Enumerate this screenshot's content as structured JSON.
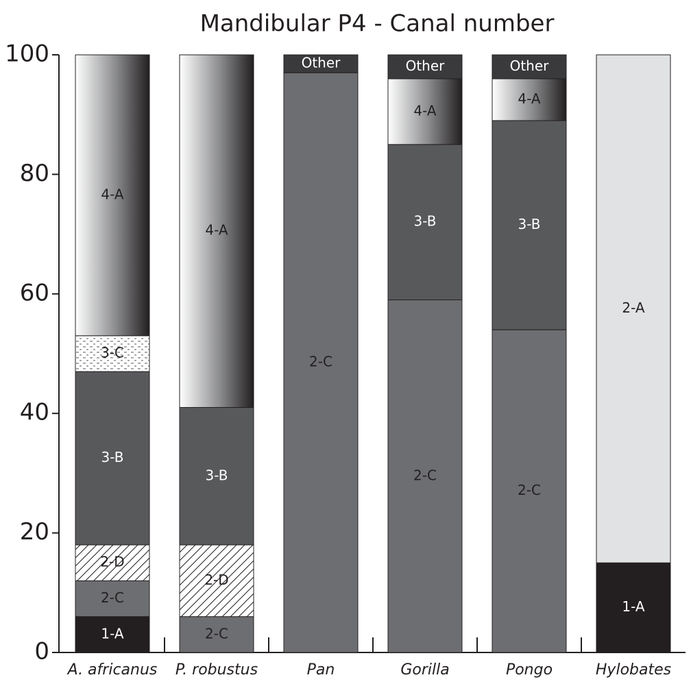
{
  "chart_data": {
    "type": "stacked_bar",
    "title": "Mandibular P4 - Canal number",
    "categories": [
      "A. africanus",
      "P. robustus",
      "Pan",
      "Gorilla",
      "Pongo",
      "Hylobates"
    ],
    "ylim": [
      0,
      100
    ],
    "yticks": [
      0,
      20,
      40,
      60,
      80,
      100
    ],
    "series": [
      {
        "name": "1-A",
        "color": "#231f20",
        "values": [
          6,
          null,
          null,
          null,
          null,
          15
        ]
      },
      {
        "name": "2-A",
        "color": "#e1e2e4",
        "values": [
          null,
          null,
          null,
          null,
          null,
          85
        ]
      },
      {
        "name": "2-C",
        "color": "#6d6e71",
        "values": [
          6,
          6,
          97,
          59,
          54,
          null
        ]
      },
      {
        "name": "2-D",
        "color": "#ffffff",
        "pattern": "hatch",
        "values": [
          6,
          12,
          null,
          null,
          null,
          null
        ]
      },
      {
        "name": "3-B",
        "color": "#58595b",
        "values": [
          29,
          23,
          null,
          26,
          35,
          null
        ]
      },
      {
        "name": "3-C",
        "color": "#ffffff",
        "pattern": "dots",
        "values": [
          6,
          null,
          null,
          null,
          null,
          null
        ]
      },
      {
        "name": "4-A",
        "color": "#3a3a3c",
        "pattern": "gradient",
        "values": [
          47,
          59,
          null,
          11,
          7,
          null
        ]
      },
      {
        "name": "Other",
        "color": "#3a3a3c",
        "values": [
          null,
          null,
          3,
          4,
          4,
          null
        ]
      }
    ]
  }
}
